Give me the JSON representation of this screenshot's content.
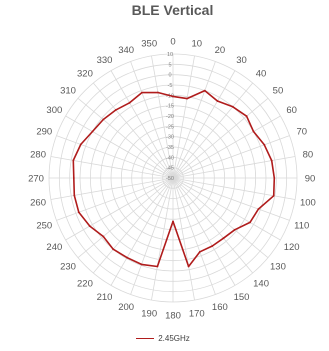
{
  "chart_data": {
    "type": "line",
    "subtype": "polar",
    "title": "BLE Vertical",
    "angle_unit": "degrees",
    "angle_ticks": [
      0,
      10,
      20,
      30,
      40,
      50,
      60,
      70,
      80,
      90,
      100,
      110,
      120,
      130,
      140,
      150,
      160,
      170,
      180,
      190,
      200,
      210,
      220,
      230,
      240,
      250,
      260,
      270,
      280,
      290,
      300,
      310,
      320,
      330,
      340,
      350
    ],
    "angle_tick_labels": [
      "0",
      "10",
      "20",
      "30",
      "40",
      "50",
      "60",
      "70",
      "80",
      "90",
      "100",
      "110",
      "120",
      "130",
      "140",
      "150",
      "160",
      "170",
      "180",
      "190",
      "200",
      "210",
      "220",
      "230",
      "240",
      "250",
      "260",
      "270",
      "280",
      "290",
      "300",
      "310",
      "320",
      "330",
      "340",
      "350"
    ],
    "radial_ticks": [
      10,
      5,
      0,
      -5,
      -10,
      -15,
      -20,
      -25,
      -30,
      -35,
      -40,
      -45,
      -50
    ],
    "radial_tick_labels": [
      "10",
      "5",
      "0",
      "-5",
      "-10",
      "-15",
      "-20",
      "-25",
      "-30",
      "-35",
      "-40",
      "-45",
      "-50"
    ],
    "rlim": [
      -50,
      10
    ],
    "grid": true,
    "legend_position": "bottom",
    "colors": {
      "series": "#b01c1c",
      "grid": "#d9d9d9",
      "text": "#595959"
    },
    "series": [
      {
        "name": "2.45GHz",
        "angles": [
          0,
          10,
          20,
          30,
          40,
          50,
          60,
          70,
          80,
          90,
          100,
          110,
          120,
          130,
          140,
          150,
          160,
          170,
          180,
          190,
          200,
          210,
          220,
          230,
          240,
          250,
          260,
          270,
          280,
          290,
          300,
          310,
          320,
          330,
          340,
          350
        ],
        "values": [
          -10.5,
          -11,
          -5,
          -7,
          -5,
          -3.5,
          -5,
          -3,
          -1.5,
          -1,
          -0.5,
          -6,
          -7,
          -11,
          -12,
          -12,
          -12,
          -6.5,
          -29,
          -6.5,
          -5.5,
          -5.5,
          -5,
          -6,
          -3.5,
          -1.5,
          -1.5,
          -2,
          -1,
          -2.5,
          -5,
          -6,
          -7,
          -8,
          -6,
          -8
        ]
      }
    ]
  }
}
